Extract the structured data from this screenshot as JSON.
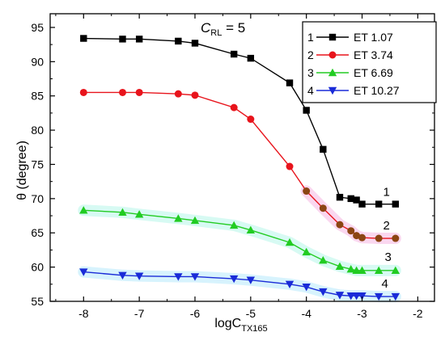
{
  "chart_data": {
    "type": "line",
    "annotation_main": "C",
    "annotation_sub": "RL",
    "annotation_rest": " = 5",
    "xlabel_main": "logC",
    "xlabel_sub": "TX165",
    "ylabel": "θ (degree)",
    "xlim": [
      -8.6,
      -1.7
    ],
    "ylim": [
      55,
      97
    ],
    "xticks": [
      -8,
      -7,
      -6,
      -5,
      -4,
      -3,
      -2
    ],
    "yticks": [
      55,
      60,
      65,
      70,
      75,
      80,
      85,
      90,
      95
    ],
    "xtick_labels": [
      "-8",
      "-7",
      "-6",
      "-5",
      "-4",
      "-3",
      "-2"
    ],
    "ytick_labels": [
      "55",
      "60",
      "65",
      "70",
      "75",
      "80",
      "85",
      "90",
      "95"
    ],
    "legend_placement": "top-right",
    "grid": false,
    "series": [
      {
        "key": "1",
        "name": "ET 1.07",
        "color": "#000000",
        "marker": "square",
        "curve_label": "1",
        "x": [
          -8,
          -7.3,
          -7,
          -6.3,
          -6,
          -5.3,
          -5,
          -4.3,
          -4,
          -3.7,
          -3.4,
          -3.2,
          -3.1,
          -3.0,
          -2.7,
          -2.4
        ],
        "y": [
          93.4,
          93.3,
          93.3,
          93.0,
          92.7,
          91.1,
          90.5,
          86.9,
          82.9,
          77.2,
          70.2,
          70.0,
          69.8,
          69.2,
          69.2,
          69.2
        ]
      },
      {
        "key": "2",
        "name": "ET 3.74",
        "color": "#e8141c",
        "marker": "circle",
        "curve_label": "2",
        "x": [
          -8,
          -7.3,
          -7,
          -6.3,
          -6,
          -5.3,
          -5,
          -4.3,
          -4,
          -3.7,
          -3.4,
          -3.2,
          -3.1,
          -3.0,
          -2.7,
          -2.4
        ],
        "y": [
          85.5,
          85.5,
          85.5,
          85.3,
          85.1,
          83.3,
          81.6,
          74.7,
          71.1,
          68.6,
          66.2,
          65.3,
          64.6,
          64.3,
          64.2,
          64.2
        ]
      },
      {
        "key": "3",
        "name": "ET 6.69",
        "color": "#22cc22",
        "marker": "triangle-up",
        "curve_label": "3",
        "x": [
          -8,
          -7.3,
          -7,
          -6.3,
          -6,
          -5.3,
          -5,
          -4.3,
          -4,
          -3.7,
          -3.4,
          -3.2,
          -3.1,
          -3.0,
          -2.7,
          -2.4
        ],
        "y": [
          68.3,
          68.0,
          67.7,
          67.1,
          66.8,
          66.1,
          65.4,
          63.6,
          62.2,
          61.0,
          60.1,
          59.7,
          59.5,
          59.5,
          59.5,
          59.5
        ]
      },
      {
        "key": "4",
        "name": "ET 10.27",
        "color": "#1a2bd8",
        "marker": "triangle-down",
        "curve_label": "4",
        "x": [
          -8,
          -7.3,
          -7,
          -6.3,
          -6,
          -5.3,
          -5,
          -4.3,
          -4,
          -3.7,
          -3.4,
          -3.2,
          -3.1,
          -3.0,
          -2.7,
          -2.4
        ],
        "y": [
          59.3,
          58.8,
          58.7,
          58.6,
          58.6,
          58.3,
          58.1,
          57.5,
          57.1,
          56.4,
          55.9,
          55.8,
          55.8,
          55.8,
          55.7,
          55.7
        ]
      }
    ]
  }
}
